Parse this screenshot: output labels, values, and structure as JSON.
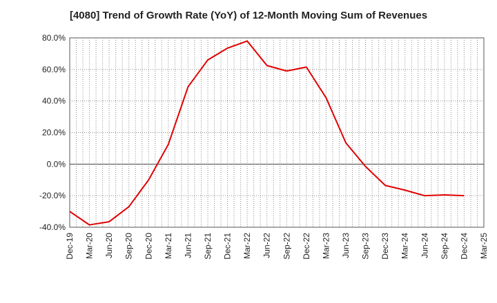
{
  "title": "[4080]  Trend of Growth Rate (YoY) of 12-Month Moving Sum of Revenues",
  "chart_data": {
    "type": "line",
    "title": "[4080]  Trend of Growth Rate (YoY) of 12-Month Moving Sum of Revenues",
    "xlabel": "",
    "ylabel": "",
    "ylim": [
      -40,
      80
    ],
    "y_ticks": [
      80,
      60,
      40,
      20,
      0,
      -20,
      -40
    ],
    "y_tick_labels": [
      "80.0%",
      "60.0%",
      "40.0%",
      "20.0%",
      "0.0%",
      "-20.0%",
      "-40.0%"
    ],
    "x_tick_labels": [
      "Dec-19",
      "Mar-20",
      "Jun-20",
      "Sep-20",
      "Dec-20",
      "Mar-21",
      "Jun-21",
      "Sep-21",
      "Dec-21",
      "Mar-22",
      "Jun-22",
      "Sep-22",
      "Dec-22",
      "Mar-23",
      "Jun-23",
      "Sep-23",
      "Dec-23",
      "Mar-24",
      "Jun-24",
      "Sep-24",
      "Dec-24",
      "Mar-25"
    ],
    "x_months": [
      "2019-12",
      "2020-01",
      "2020-02",
      "2020-03",
      "2020-04",
      "2020-05",
      "2020-06",
      "2020-07",
      "2020-08",
      "2020-09",
      "2020-10",
      "2020-11",
      "2020-12",
      "2021-01",
      "2021-02",
      "2021-03",
      "2021-04",
      "2021-05",
      "2021-06",
      "2021-07",
      "2021-08",
      "2021-09",
      "2021-10",
      "2021-11",
      "2021-12",
      "2022-01",
      "2022-02",
      "2022-03",
      "2022-04",
      "2022-05",
      "2022-06",
      "2022-07",
      "2022-08",
      "2022-09",
      "2022-10",
      "2022-11",
      "2022-12",
      "2023-01",
      "2023-02",
      "2023-03",
      "2023-04",
      "2023-05",
      "2023-06",
      "2023-07",
      "2023-08",
      "2023-09",
      "2023-10",
      "2023-11",
      "2023-12",
      "2024-01",
      "2024-02",
      "2024-03",
      "2024-04",
      "2024-05",
      "2024-06",
      "2024-07",
      "2024-08",
      "2024-09",
      "2024-10",
      "2024-11",
      "2024-12",
      "2025-01",
      "2025-02",
      "2025-03"
    ],
    "grid": true,
    "series": [
      {
        "name": "",
        "color": "#e00000",
        "x": [
          "Dec-19",
          "Mar-20",
          "Jun-20",
          "Sep-20",
          "Dec-20",
          "Mar-21",
          "Jun-21",
          "Sep-21",
          "Dec-21",
          "Mar-22",
          "Jun-22",
          "Sep-22",
          "Dec-22",
          "Mar-23",
          "Jun-23",
          "Sep-23",
          "Dec-23",
          "Mar-24",
          "Jun-24",
          "Sep-24",
          "Dec-24"
        ],
        "values": [
          -30.0,
          -38.5,
          -36.5,
          -27.0,
          -10.0,
          12.5,
          49.0,
          66.0,
          73.5,
          78.0,
          62.5,
          59.0,
          61.5,
          42.0,
          13.5,
          -1.5,
          -13.5,
          -16.5,
          -20.0,
          -19.5,
          -20.0
        ]
      }
    ]
  }
}
